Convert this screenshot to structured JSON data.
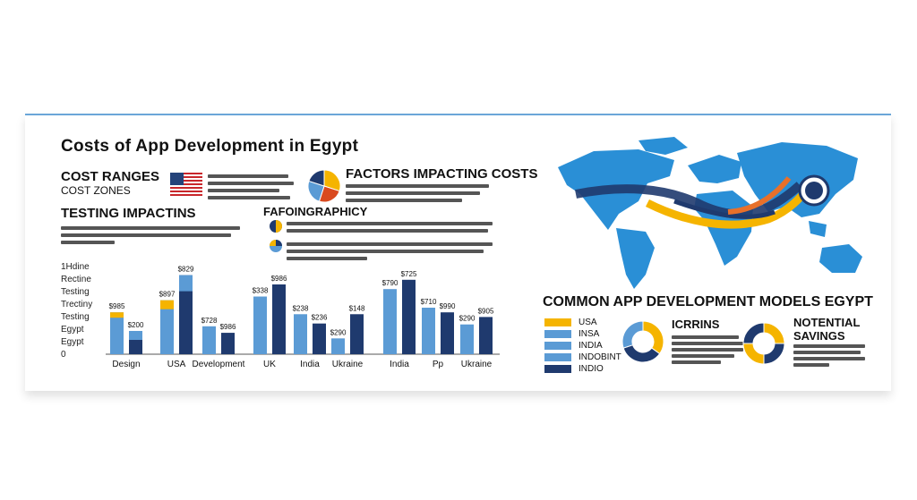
{
  "title": "Costs of App Development in Egypt",
  "left": {
    "cost_ranges": "COST RANGES",
    "cost_zones": "COST ZONES",
    "factors_heading": "FACTORS IMPACTING COSTS",
    "testing_heading": "TESTING IMPACTINS",
    "infographic_heading": "FAFOINGRAPHICY"
  },
  "right": {
    "models_heading": "COMMON APP DEVELOPMENT MODELS EGYPT",
    "icons_heading": "ICRRINS",
    "savings_heading_1": "NOTENTIAL",
    "savings_heading_2": "SAVINGS",
    "legend": [
      "USA",
      "INSA",
      "INDIA",
      "INDOBINT",
      "INDIO"
    ]
  },
  "colors": {
    "light_blue": "#5b9bd5",
    "dark_navy": "#1f3a6e",
    "yellow": "#f5b400",
    "map_blue": "#2a8fd6"
  },
  "chart_data": {
    "type": "bar",
    "y_tick_labels": [
      "1Hdine",
      "Rectine",
      "Testing",
      "Trectiny",
      "Testing",
      "Egypt",
      "Egypt",
      "0"
    ],
    "categories": [
      "Design",
      "USA",
      "Development",
      "UK",
      "India",
      "Ukraine",
      "India",
      "Pp",
      "Ukraine"
    ],
    "groups": [
      {
        "bars": [
          {
            "value": 45,
            "color": "light_blue",
            "overlay_top": 6
          },
          {
            "value": 25,
            "color": "dark_navy",
            "overlay_top": 10
          }
        ],
        "labels": [
          "$985",
          "$200"
        ]
      },
      {
        "bars": [
          {
            "value": 58,
            "color": "light_blue",
            "overlay_top": 10
          },
          {
            "value": 85,
            "color": "dark_navy",
            "overlay_top": 18
          }
        ],
        "labels": [
          "$897",
          "$829"
        ]
      },
      {
        "bars": [
          {
            "value": 30,
            "color": "light_blue"
          },
          {
            "value": 23,
            "color": "dark_navy"
          }
        ],
        "labels": [
          "$728",
          "$986"
        ]
      },
      {
        "bars": [
          {
            "value": 62,
            "color": "light_blue"
          },
          {
            "value": 75,
            "color": "dark_navy"
          }
        ],
        "labels": [
          "$338",
          "$986"
        ]
      },
      {
        "bars": [
          {
            "value": 43,
            "color": "light_blue"
          },
          {
            "value": 33,
            "color": "dark_navy"
          }
        ],
        "labels": [
          "$238",
          "$236"
        ]
      },
      {
        "bars": [
          {
            "value": 17,
            "color": "light_blue"
          },
          {
            "value": 43,
            "color": "dark_navy"
          }
        ],
        "labels": [
          "$290",
          "$148"
        ]
      },
      {
        "bars": [
          {
            "value": 70,
            "color": "light_blue"
          },
          {
            "value": 80,
            "color": "dark_navy"
          }
        ],
        "labels": [
          "$790",
          "$725"
        ]
      },
      {
        "bars": [
          {
            "value": 50,
            "color": "light_blue"
          },
          {
            "value": 45,
            "color": "dark_navy"
          }
        ],
        "labels": [
          "$710",
          "$990"
        ]
      },
      {
        "bars": [
          {
            "value": 32,
            "color": "light_blue"
          },
          {
            "value": 40,
            "color": "dark_navy"
          }
        ],
        "labels": [
          "$290",
          "$905"
        ]
      }
    ],
    "ylim": [
      0,
      100
    ],
    "legend_placement": "none",
    "grid": false
  },
  "donuts": {
    "factors_pie": [
      {
        "value": 30,
        "color": "yellow"
      },
      {
        "value": 25,
        "color": "#d94a1f"
      },
      {
        "value": 25,
        "color": "light_blue"
      },
      {
        "value": 20,
        "color": "dark_navy"
      }
    ],
    "icons_donut": [
      {
        "value": 35,
        "color": "yellow"
      },
      {
        "value": 35,
        "color": "dark_navy"
      },
      {
        "value": 30,
        "color": "light_blue"
      }
    ],
    "savings_donut": [
      {
        "value": 25,
        "color": "yellow"
      },
      {
        "value": 25,
        "color": "dark_navy"
      },
      {
        "value": 25,
        "color": "yellow"
      },
      {
        "value": 25,
        "color": "dark_navy"
      }
    ]
  }
}
